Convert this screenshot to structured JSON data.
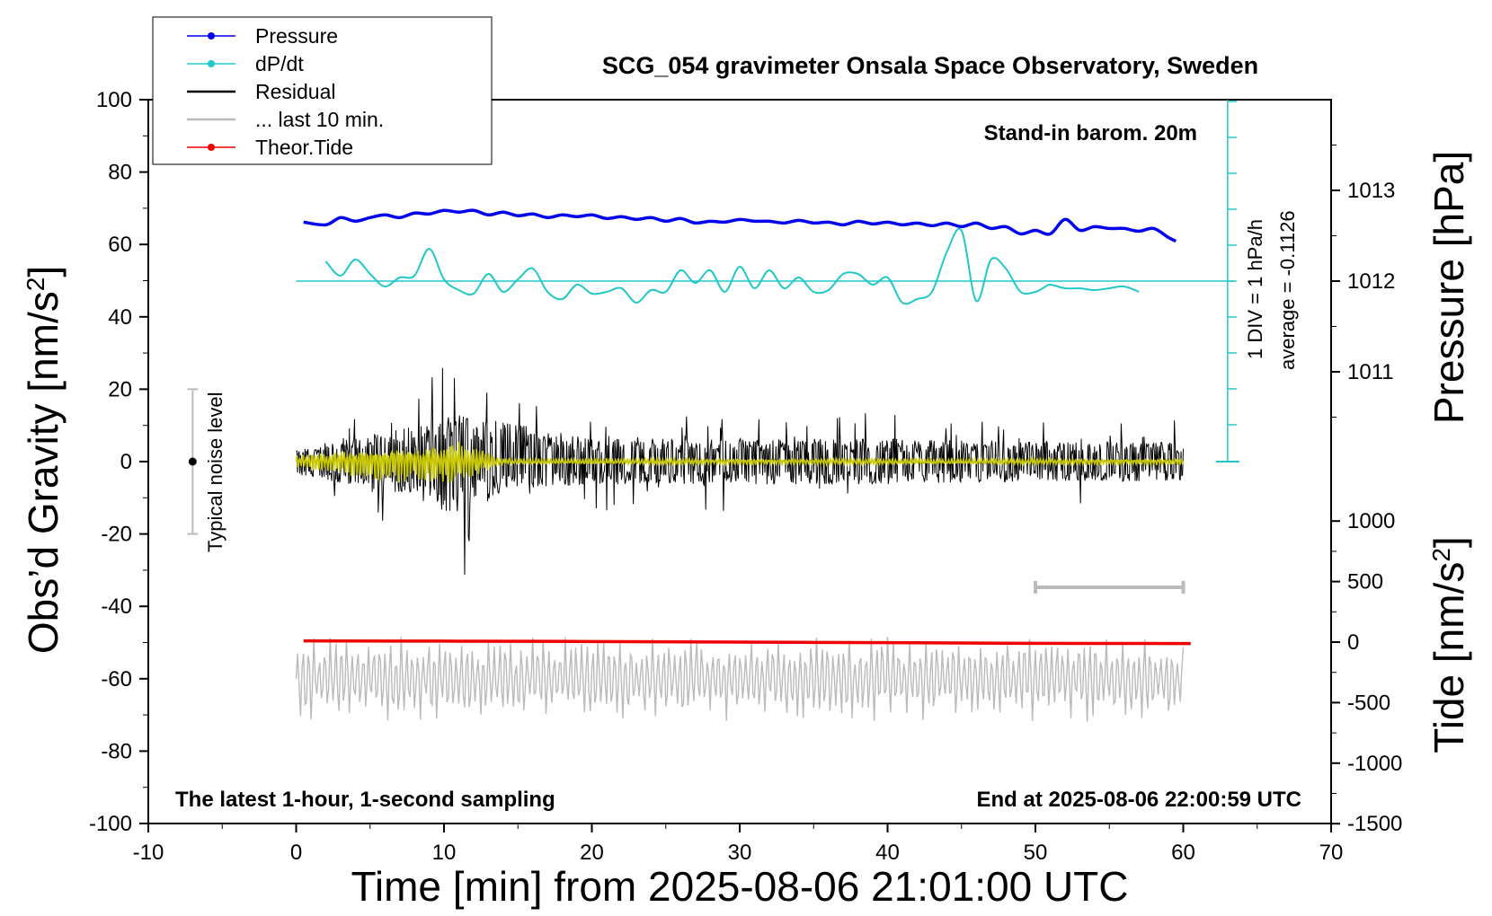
{
  "chart_data": {
    "type": "line",
    "title": "SCG_054 gravimeter Onsala Space Observatory, Sweden",
    "xlabel": "Time [min] from 2025-08-06 21:01:00 UTC",
    "ylabel_left": "Obs’d Gravity [nm/s",
    "ylabel_left_sup": "2",
    "ylabel_left_end": "]",
    "ylabel_right_pressure": "Pressure [hPa]",
    "ylabel_right_tide": "Tide [nm/s",
    "ylabel_right_tide_sup": "2",
    "ylabel_right_tide_end": "]",
    "xlim": [
      -10,
      70
    ],
    "ylim": [
      -100,
      100
    ],
    "x_ticks": [
      -10,
      0,
      10,
      20,
      30,
      40,
      50,
      60,
      70
    ],
    "y_ticks": [
      -100,
      -80,
      -60,
      -40,
      -20,
      0,
      20,
      40,
      60,
      80,
      100
    ],
    "pressure_ticks": [
      1011,
      1012,
      1013
    ],
    "tide_ticks": [
      -1500,
      -1000,
      -500,
      0,
      500,
      1000
    ],
    "annotations": {
      "barometer": "Stand-in barom. 20m",
      "latest": "The latest 1-hour, 1-second sampling",
      "end": "End at 2025-08-06 22:00:59 UTC",
      "noise": "Typical noise level",
      "div": "1 DIV = 1 hPa/h",
      "average": "average = -0.1126"
    },
    "legend": [
      {
        "label": "Pressure",
        "color": "#0000ee",
        "marker": true
      },
      {
        "label": "dP/dt",
        "color": "#22c8c8",
        "marker": true
      },
      {
        "label": "Residual",
        "color": "#000000",
        "marker": false
      },
      {
        "label": "... last 10 min.",
        "color": "#bbbbbb",
        "marker": false
      },
      {
        "label": "Theor.Tide",
        "color": "#ee0000",
        "marker": true
      }
    ],
    "series": [
      {
        "name": "Pressure",
        "units": "hPa",
        "color": "#0000ee",
        "x": [
          0.5,
          2,
          3,
          4,
          5,
          6,
          7,
          8,
          9,
          10,
          11,
          12,
          13,
          14,
          15,
          16,
          17,
          18,
          19,
          20,
          21,
          22,
          23,
          24,
          25,
          26,
          27,
          28,
          29,
          30,
          31,
          32,
          33,
          34,
          35,
          36,
          37,
          38,
          39,
          40,
          41,
          42,
          43,
          44,
          45,
          46,
          47,
          48,
          49,
          50,
          51,
          52,
          53,
          54,
          55,
          56,
          57,
          58,
          59,
          59.5
        ],
        "values": [
          1012.65,
          1012.62,
          1012.7,
          1012.66,
          1012.7,
          1012.73,
          1012.7,
          1012.75,
          1012.74,
          1012.78,
          1012.76,
          1012.78,
          1012.73,
          1012.76,
          1012.72,
          1012.74,
          1012.7,
          1012.73,
          1012.71,
          1012.73,
          1012.69,
          1012.71,
          1012.68,
          1012.7,
          1012.66,
          1012.69,
          1012.64,
          1012.66,
          1012.65,
          1012.68,
          1012.66,
          1012.66,
          1012.64,
          1012.67,
          1012.64,
          1012.65,
          1012.62,
          1012.66,
          1012.63,
          1012.65,
          1012.62,
          1012.64,
          1012.61,
          1012.64,
          1012.6,
          1012.64,
          1012.58,
          1012.6,
          1012.52,
          1012.56,
          1012.52,
          1012.68,
          1012.56,
          1012.6,
          1012.58,
          1012.58,
          1012.55,
          1012.58,
          1012.48,
          1012.44
        ]
      },
      {
        "name": "dP/dt",
        "units": "hPa/h",
        "color": "#22c8c8",
        "average": -0.1126,
        "x": [
          2,
          3,
          4,
          5,
          6,
          7,
          8,
          9,
          10,
          11,
          12,
          13,
          14,
          15,
          16,
          17,
          18,
          19,
          20,
          21,
          22,
          23,
          24,
          25,
          26,
          27,
          28,
          29,
          30,
          31,
          32,
          33,
          34,
          35,
          36,
          37,
          38,
          39,
          40,
          41,
          42,
          43,
          44,
          45,
          46,
          47,
          48,
          49,
          50,
          50.5,
          51,
          52,
          53,
          54,
          55,
          56,
          57
        ],
        "values": [
          0.55,
          0.15,
          0.6,
          0.2,
          -0.15,
          0.1,
          0.15,
          0.9,
          0.05,
          -0.25,
          -0.35,
          0.2,
          -0.3,
          0.05,
          0.35,
          -0.3,
          -0.5,
          -0.1,
          -0.35,
          -0.3,
          -0.2,
          -0.6,
          -0.25,
          -0.3,
          0.3,
          -0.05,
          0.3,
          -0.3,
          0.4,
          -0.2,
          0.3,
          -0.2,
          0.1,
          -0.3,
          -0.25,
          0.2,
          0.2,
          -0.1,
          0.1,
          -0.6,
          -0.5,
          -0.3,
          0.8,
          1.4,
          -0.55,
          0.6,
          0.35,
          -0.3,
          -0.3,
          -0.2,
          -0.1,
          -0.2,
          -0.2,
          -0.25,
          -0.2,
          -0.15,
          -0.3
        ]
      },
      {
        "name": "Residual",
        "units": "nm/s2",
        "color": "#000000",
        "x": [
          0,
          60
        ],
        "envelope": [
          [
            0,
            -8,
            8
          ],
          [
            7,
            -20,
            20
          ],
          [
            11,
            -34,
            29
          ],
          [
            14,
            -18,
            25
          ],
          [
            20,
            -14,
            14
          ],
          [
            40,
            -14,
            14
          ],
          [
            50,
            -12,
            12
          ],
          [
            60,
            -12,
            12
          ]
        ]
      },
      {
        "name": "Residual smoothed",
        "units": "nm/s2",
        "color": "#c8c800",
        "envelope": [
          [
            0,
            -2,
            2
          ],
          [
            7,
            -6,
            6
          ],
          [
            8,
            -6,
            5
          ],
          [
            11,
            -7,
            7
          ],
          [
            13,
            -3,
            3
          ],
          [
            14,
            -1,
            1
          ],
          [
            60,
            -1,
            1
          ]
        ]
      },
      {
        "name": "Theor.Tide",
        "units": "nm/s2",
        "color": "#ee0000",
        "x": [
          0.5,
          10,
          20,
          30,
          40,
          50,
          60.5
        ],
        "values": [
          10,
          8,
          5,
          0,
          -5,
          -10,
          -12
        ]
      },
      {
        "name": "... last 10 min.",
        "units": "nm/s2",
        "color": "#bbbbbb",
        "x_range": [
          0,
          60
        ],
        "center": -60,
        "amplitude": 10
      }
    ],
    "last_10min_bar": [
      50,
      60
    ],
    "noise_bar": [
      -20,
      20
    ],
    "noise_x": -7
  }
}
